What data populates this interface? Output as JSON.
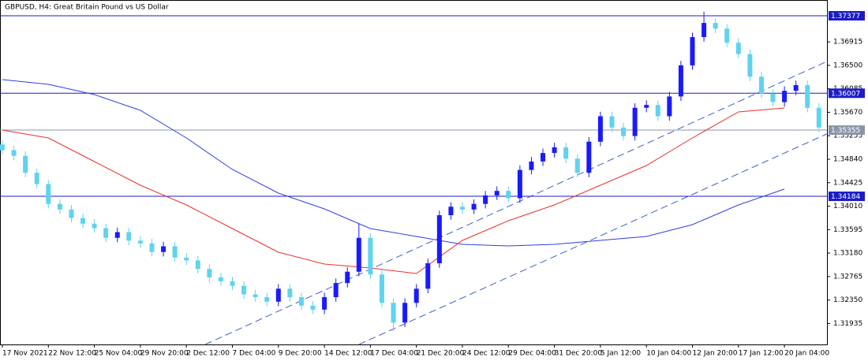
{
  "chart_data": {
    "type": "candlestick",
    "title": "GBPUSD, H4:  Great Britain Pound vs US Dollar",
    "categories": [
      "17 Nov 2021",
      "22 Nov 12:00",
      "25 Nov 04:00",
      "29 Nov 20:00",
      "2 Dec 12:00",
      "7 Dec 04:00",
      "9 Dec 20:00",
      "14 Dec 12:00",
      "17 Dec 04:00",
      "21 Dec 20:00",
      "24 Dec 12:00",
      "29 Dec 04:00",
      "31 Dec 20:00",
      "5 Jan 12:00",
      "10 Jan 04:00",
      "12 Jan 20:00",
      "17 Jan 12:00",
      "20 Jan 04:00"
    ],
    "ylim": [
      1.31564,
      1.37656
    ],
    "yticks": [
      1.36915,
      {
        "value": 1.365,
        "label": "1.36500"
      },
      1.36085,
      {
        "value": 1.3567,
        "label": "1.35670"
      },
      1.35255,
      {
        "value": 1.3484,
        "label": "1.34840"
      },
      1.34425,
      {
        "value": 1.3401,
        "label": "1.34010"
      },
      1.33595,
      {
        "value": 1.3318,
        "label": "1.33180"
      },
      1.32765,
      {
        "value": 1.3235,
        "label": "1.32350"
      },
      1.31935
    ],
    "candles": {
      "up_color": "#1a1aff",
      "down_color": "#5fd3f0",
      "open": [
        1.351,
        1.35,
        1.349,
        1.346,
        1.344,
        1.3405,
        1.3395,
        1.338,
        1.337,
        1.3362,
        1.3345,
        1.3355,
        1.334,
        1.3335,
        1.332,
        1.333,
        1.331,
        1.3305,
        1.329,
        1.3275,
        1.3268,
        1.326,
        1.3245,
        1.324,
        1.3232,
        1.3255,
        1.324,
        1.3225,
        1.3218,
        1.324,
        1.3265,
        1.3285,
        1.3345,
        1.328,
        1.323,
        1.3195,
        1.323,
        1.3255,
        1.33,
        1.3385,
        1.34,
        1.3395,
        1.3405,
        1.342,
        1.3428,
        1.3415,
        1.3465,
        1.348,
        1.3495,
        1.3505,
        1.3485,
        1.346,
        1.3515,
        1.356,
        1.354,
        1.3525,
        1.3575,
        1.358,
        1.356,
        1.3595,
        1.365,
        1.37,
        1.3725,
        1.3715,
        1.369,
        1.367,
        1.363,
        1.36,
        1.3585,
        1.3605,
        1.3615,
        1.3575
      ],
      "high": [
        1.3518,
        1.3508,
        1.3498,
        1.3468,
        1.3448,
        1.3413,
        1.3403,
        1.3388,
        1.3378,
        1.337,
        1.3363,
        1.3363,
        1.3348,
        1.3343,
        1.3338,
        1.3338,
        1.3318,
        1.3313,
        1.3298,
        1.3283,
        1.3276,
        1.3268,
        1.3253,
        1.3248,
        1.3263,
        1.3263,
        1.3248,
        1.3233,
        1.3248,
        1.3273,
        1.3293,
        1.337,
        1.3353,
        1.3288,
        1.3238,
        1.3238,
        1.3263,
        1.3308,
        1.3393,
        1.3408,
        1.3408,
        1.3413,
        1.3428,
        1.3436,
        1.3436,
        1.3473,
        1.3488,
        1.3503,
        1.3513,
        1.3513,
        1.3493,
        1.3523,
        1.3568,
        1.3568,
        1.3548,
        1.3583,
        1.3588,
        1.3588,
        1.3603,
        1.3658,
        1.3708,
        1.3745,
        1.3733,
        1.3723,
        1.3698,
        1.3678,
        1.3638,
        1.3608,
        1.3613,
        1.3623,
        1.3623,
        1.3583
      ],
      "low": [
        1.3492,
        1.3482,
        1.3452,
        1.3432,
        1.3397,
        1.3387,
        1.3372,
        1.3362,
        1.3354,
        1.3337,
        1.3337,
        1.3332,
        1.3327,
        1.3312,
        1.3312,
        1.3302,
        1.3297,
        1.3282,
        1.3267,
        1.326,
        1.3252,
        1.3237,
        1.3232,
        1.3224,
        1.3224,
        1.3232,
        1.3217,
        1.321,
        1.321,
        1.3232,
        1.3257,
        1.3277,
        1.3272,
        1.3222,
        1.318,
        1.3187,
        1.3222,
        1.3247,
        1.3292,
        1.3377,
        1.3387,
        1.3387,
        1.3397,
        1.3412,
        1.3407,
        1.3407,
        1.3457,
        1.3472,
        1.3487,
        1.3477,
        1.3452,
        1.3452,
        1.3507,
        1.3532,
        1.3517,
        1.3517,
        1.3567,
        1.3552,
        1.3552,
        1.3587,
        1.3642,
        1.3692,
        1.3707,
        1.3682,
        1.3662,
        1.3622,
        1.3592,
        1.3577,
        1.3577,
        1.3597,
        1.3567,
        1.3532
      ],
      "close": [
        1.35,
        1.349,
        1.346,
        1.344,
        1.3405,
        1.3395,
        1.338,
        1.337,
        1.3362,
        1.3345,
        1.3355,
        1.334,
        1.3335,
        1.332,
        1.333,
        1.331,
        1.3305,
        1.329,
        1.3275,
        1.3268,
        1.326,
        1.3245,
        1.324,
        1.3232,
        1.3255,
        1.324,
        1.3225,
        1.3218,
        1.324,
        1.3265,
        1.3285,
        1.3345,
        1.328,
        1.323,
        1.3195,
        1.323,
        1.3255,
        1.33,
        1.3385,
        1.34,
        1.3395,
        1.3405,
        1.342,
        1.3428,
        1.3415,
        1.3465,
        1.348,
        1.3495,
        1.3505,
        1.3485,
        1.346,
        1.3515,
        1.356,
        1.354,
        1.3525,
        1.3575,
        1.358,
        1.356,
        1.3595,
        1.365,
        1.37,
        1.3725,
        1.3715,
        1.369,
        1.367,
        1.363,
        1.36,
        1.3585,
        1.3605,
        1.3615,
        1.3575,
        1.354
      ]
    },
    "series": [
      {
        "color": "#2f3fe0",
        "values": [
          1.36248,
          1.36164,
          1.35983,
          1.35704,
          1.35217,
          1.34659,
          1.34241,
          1.33962,
          1.33613,
          1.33474,
          1.33335,
          1.33307,
          1.33335,
          1.33404,
          1.33474,
          1.33683,
          1.34032,
          1.34311
        ]
      },
      {
        "color": "#e8302a",
        "values": [
          1.35356,
          1.35217,
          1.34798,
          1.3438,
          1.34032,
          1.33613,
          1.33195,
          1.32986,
          1.32916,
          1.32819,
          1.33404,
          1.33753,
          1.34032,
          1.3438,
          1.34728,
          1.35217,
          1.35677,
          1.35746
        ]
      }
    ],
    "levels": [
      {
        "value": 1.37377,
        "color": "#1c1cc8"
      },
      {
        "value": 1.36007,
        "color": "#1c1cc8"
      },
      {
        "value": 1.35355,
        "color": "#8a96a8"
      },
      {
        "value": 1.34184,
        "color": "#1c1cc8"
      }
    ],
    "trendlines": [
      {
        "color": "#3a5fd0",
        "x": [
          4.41,
          17.92
        ],
        "y": [
          1.31564,
          1.36569
        ]
      },
      {
        "color": "#3a5fd0",
        "x": [
          7.75,
          17.92
        ],
        "y": [
          1.31564,
          1.35286
        ]
      }
    ]
  }
}
